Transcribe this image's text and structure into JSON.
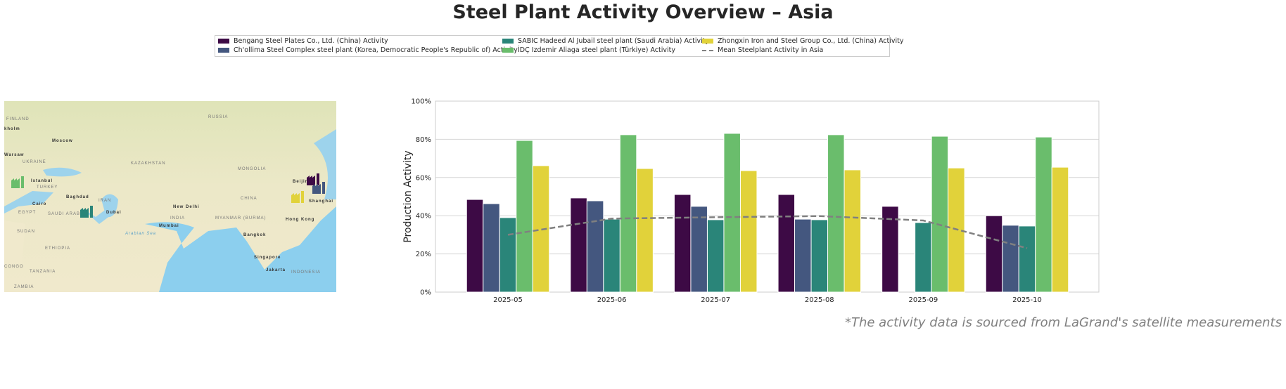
{
  "title": "Steel Plant Activity Overview – Asia",
  "source_note": "*The activity data is sourced from LaGrand's satellite measurements",
  "map": {
    "labels": [
      "RUSSIA",
      "FINLAND",
      "kholm",
      "Moscow",
      "Warsaw",
      "UKRAINE",
      "KAZAKHSTAN",
      "MONGOLIA",
      "Istanbul",
      "TURKEY",
      "Baghdad",
      "IRAN",
      "CHINA",
      "Beijing",
      "Shanghai",
      "Cairo",
      "EGYPT",
      "SAUDI ARABIA",
      "Dubai",
      "New Delhi",
      "INDIA",
      "MYANMAR (BURMA)",
      "Hong Kong",
      "Mumbai",
      "Arabian Sea",
      "SUDAN",
      "Bangkok",
      "ETHIOPIA",
      "Singapore",
      "CONGO",
      "TANZANIA",
      "Jakarta",
      "INDONESIA",
      "ZAMBIA"
    ],
    "markers": [
      {
        "plant": "İDÇ Izdemir Aliaga steel plant (Türkiye)",
        "color": "#6abd6c",
        "icon": "factory-icon"
      },
      {
        "plant": "SABIC Hadeed Al Jubail steel plant (Saudi Arabia)",
        "color": "#2a8579",
        "icon": "factory-icon"
      },
      {
        "plant": "Bengang Steel Plates Co., Ltd. (China)",
        "color": "#3d0a45",
        "icon": "factory-icon"
      },
      {
        "plant": "Ch'ollima Steel Complex steel plant (Korea, Democratic People's Republic of)",
        "color": "#44577f",
        "icon": "factory-icon"
      },
      {
        "plant": "Zhongxin Iron and Steel Group Co., Ltd. (China)",
        "color": "#e1d23a",
        "icon": "factory-icon"
      }
    ]
  },
  "chart_data": {
    "type": "bar",
    "ylabel": "Production Activity",
    "xlabel": "",
    "ylim": [
      0,
      100
    ],
    "yticks": [
      "0%",
      "20%",
      "40%",
      "60%",
      "80%",
      "100%"
    ],
    "grid": true,
    "legend_position": "top-center",
    "categories": [
      "2025-05",
      "2025-06",
      "2025-07",
      "2025-08",
      "2025-09",
      "2025-10"
    ],
    "series": [
      {
        "name": "Bengang Steel Plates Co., Ltd. (China) Activity",
        "color": "#3d0a45",
        "values": [
          48.5,
          49.3,
          51.1,
          51.1,
          44.9,
          40.0
        ]
      },
      {
        "name": "Ch'ollima Steel Complex steel plant (Korea, Democratic People's Republic of) Activity",
        "color": "#44577f",
        "values": [
          46.3,
          47.8,
          44.9,
          38.2,
          null,
          35.0
        ]
      },
      {
        "name": "SABIC Hadeed Al Jubail steel plant (Saudi Arabia) Activity",
        "color": "#2a8579",
        "values": [
          39.0,
          38.2,
          37.9,
          37.9,
          36.4,
          34.6
        ]
      },
      {
        "name": "İDÇ Izdemir Aliaga steel plant (Türkiye) Activity",
        "color": "#6abd6c",
        "values": [
          79.4,
          82.4,
          83.1,
          82.4,
          81.6,
          81.2
        ]
      },
      {
        "name": "Zhongxin Iron and Steel Group Co., Ltd. (China) Activity",
        "color": "#e1d23a",
        "values": [
          66.2,
          64.7,
          63.6,
          64.0,
          65.0,
          65.4
        ]
      }
    ],
    "mean_line": {
      "name": "Mean Steelplant Activity in Asia",
      "color": "#808080",
      "style": "dashed",
      "values": [
        30.0,
        38.5,
        39.2,
        39.8,
        37.5,
        23.0
      ]
    }
  }
}
